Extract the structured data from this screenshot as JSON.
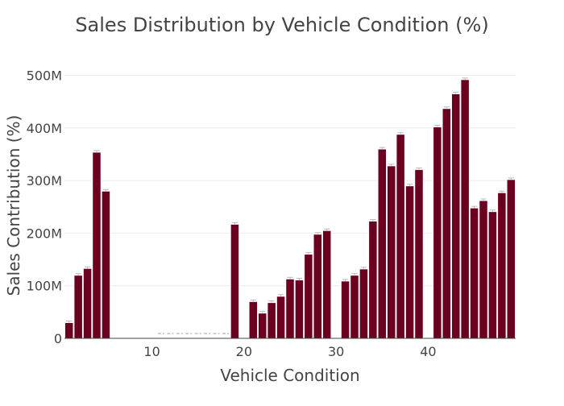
{
  "chart_data": {
    "type": "bar",
    "title": "Sales Distribution by Vehicle Condition (%)",
    "xlabel": "Vehicle Condition",
    "ylabel": "Sales Contribution (%)",
    "x": [
      1,
      2,
      3,
      4,
      5,
      6,
      7,
      8,
      9,
      10,
      11,
      12,
      13,
      14,
      15,
      16,
      17,
      18,
      19,
      20,
      21,
      22,
      23,
      24,
      25,
      26,
      27,
      28,
      29,
      30,
      31,
      32,
      33,
      34,
      35,
      36,
      37,
      38,
      39,
      40,
      41,
      42,
      43,
      44,
      45,
      46,
      47,
      48,
      49
    ],
    "values": [
      30,
      120,
      133,
      354,
      280,
      0,
      0,
      0,
      0,
      0,
      0,
      0,
      0,
      0,
      0,
      0,
      0,
      0,
      217,
      0,
      70,
      48,
      68,
      80,
      113,
      111,
      160,
      198,
      205,
      0,
      109,
      120,
      132,
      223,
      360,
      328,
      388,
      290,
      321,
      0,
      402,
      437,
      465,
      492,
      248,
      262,
      241,
      277,
      302
    ],
    "xlim": [
      0.5,
      49.5
    ],
    "ylim": [
      0,
      530
    ],
    "y_ticks": [
      {
        "value": 0,
        "label": "0"
      },
      {
        "value": 100,
        "label": "100M"
      },
      {
        "value": 200,
        "label": "200M"
      },
      {
        "value": 300,
        "label": "300M"
      },
      {
        "value": 400,
        "label": "400M"
      },
      {
        "value": 500,
        "label": "500M"
      }
    ],
    "x_ticks": [
      {
        "value": 10,
        "label": "10"
      },
      {
        "value": 20,
        "label": "20"
      },
      {
        "value": 30,
        "label": "30"
      },
      {
        "value": 40,
        "label": "40"
      }
    ],
    "error_bar_value": 3,
    "grid": true,
    "legend": false,
    "bar_color": "#6b0020",
    "error_bar_color": "#b8b8b8"
  }
}
